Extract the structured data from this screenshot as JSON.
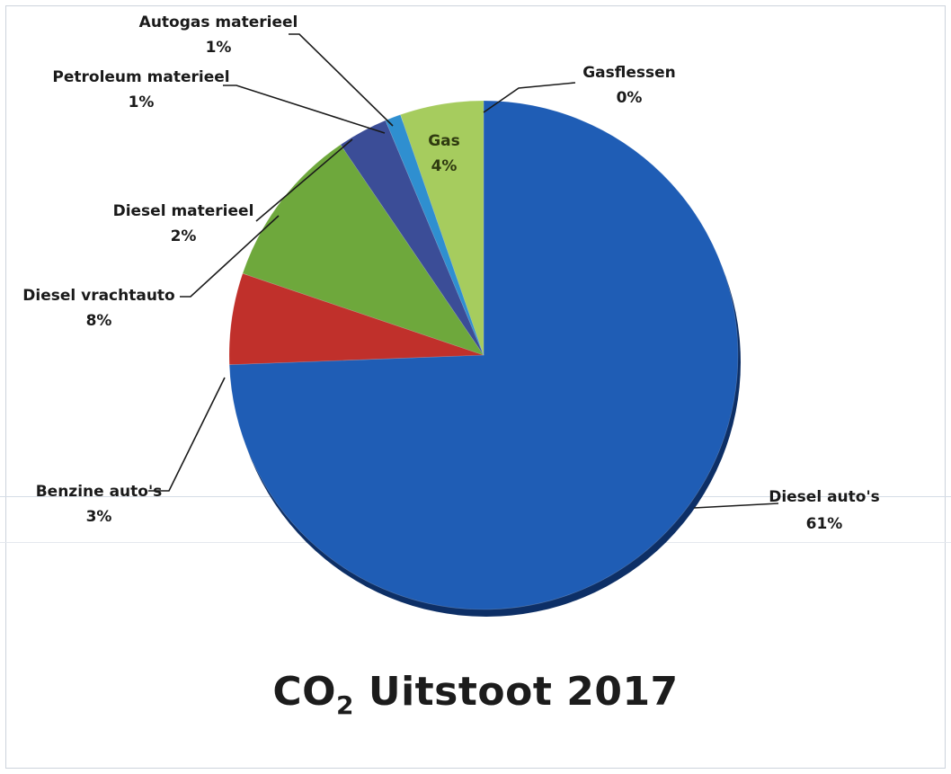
{
  "chart_data": {
    "type": "pie",
    "title": {
      "prefix": "CO",
      "subscript": "2",
      "suffix": " Uitstoot 2017"
    },
    "slices": [
      {
        "label": "Diesel auto's",
        "value": 61,
        "value_label": "61%",
        "color": "#1f5db5"
      },
      {
        "label": "Benzine auto's",
        "value": 3,
        "value_label": "3%",
        "color": "#c0302b"
      },
      {
        "label": "Diesel vrachtauto",
        "value": 8,
        "value_label": "8%",
        "color": "#6ea83c"
      },
      {
        "label": "Diesel materieel",
        "value": 2,
        "value_label": "2%",
        "color": "#3b4d97"
      },
      {
        "label": "Petroleum materieel",
        "value": 1,
        "value_label": "1%",
        "color": "#2f8fd0"
      },
      {
        "label": "Autogas materieel",
        "value": 1,
        "value_label": "1%",
        "color": "#2f8fd0"
      },
      {
        "label": "Gas",
        "value": 4,
        "value_label": "4%",
        "color": "#a6cc5e"
      },
      {
        "label": "Gasflessen",
        "value": 0,
        "value_label": "0%",
        "color": "#a6cc5e"
      }
    ],
    "legend": "none",
    "labels": "outside with leader lines"
  }
}
